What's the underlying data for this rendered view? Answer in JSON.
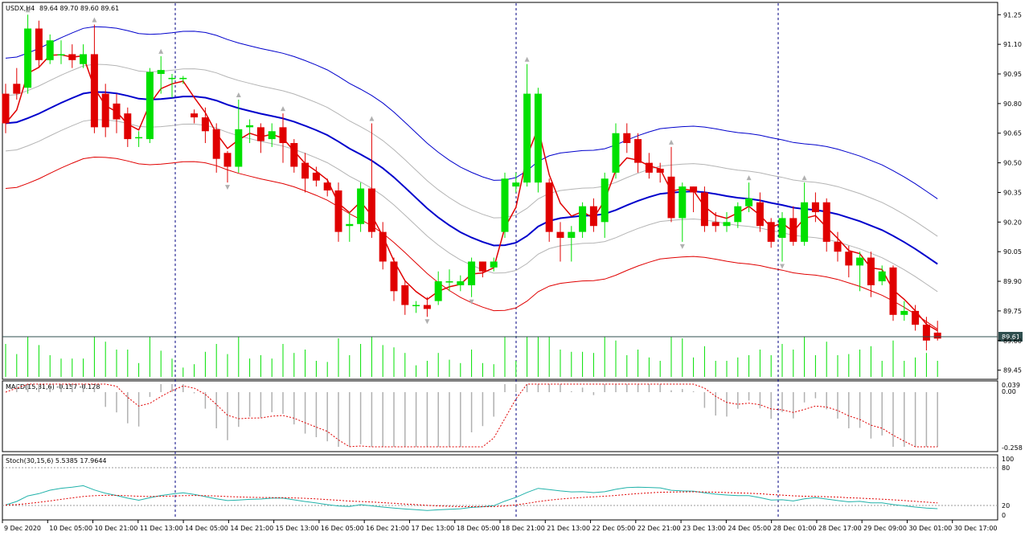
{
  "header": {
    "symbol_info": "USDX,H4",
    "ohlc": "89.64 89.70 89.60 89.61"
  },
  "current_price_label": "89.61",
  "price_axis": {
    "labels": [
      "91.25",
      "91.10",
      "90.95",
      "90.80",
      "90.65",
      "90.50",
      "90.35",
      "90.20",
      "90.05",
      "89.90",
      "89.75",
      "89.60",
      "89.45"
    ]
  },
  "time_axis": {
    "labels": [
      "9 Dec 2020",
      "10 Dec 05:00",
      "10 Dec 21:00",
      "11 Dec 13:00",
      "14 Dec 05:00",
      "14 Dec 21:00",
      "15 Dec 13:00",
      "16 Dec 05:00",
      "16 Dec 21:00",
      "17 Dec 13:00",
      "18 Dec 05:00",
      "18 Dec 21:00",
      "21 Dec 13:00",
      "22 Dec 05:00",
      "22 Dec 21:00",
      "23 Dec 13:00",
      "24 Dec 05:00",
      "28 Dec 01:00",
      "28 Dec 17:00",
      "29 Dec 09:00",
      "30 Dec 01:00",
      "30 Dec 17:00"
    ]
  },
  "macd_panel": {
    "title": "MACD(15,31,6) -0.157 -0.128",
    "scale_top": "0.039",
    "scale_zero": "0.00",
    "scale_bottom": "-0.258"
  },
  "stoch_panel": {
    "title": "Stoch(30,15,6) 5.5385 17.9644",
    "levels": [
      "100",
      "80",
      "20",
      "0"
    ]
  },
  "colors": {
    "bull": "#00e000",
    "bear": "#e00000",
    "ma_blue": "#0000cc",
    "ma_red": "#e00000",
    "band_gray": "#b4b4b4",
    "stoch_main": "#20b2aa",
    "grid_vline": "#000080"
  },
  "chart_data": {
    "type": "candlestick",
    "timeframe": "H4",
    "ylim": [
      89.42,
      91.3
    ],
    "candles": [
      [
        90.85,
        90.7,
        90.9,
        90.65
      ],
      [
        90.9,
        90.85,
        90.98,
        90.82
      ],
      [
        90.88,
        91.18,
        91.25,
        90.85
      ],
      [
        91.18,
        91.02,
        91.22,
        90.98
      ],
      [
        91.02,
        91.12,
        91.15,
        91.0
      ],
      [
        91.05,
        91.05,
        91.12,
        91.0
      ],
      [
        91.05,
        91.02,
        91.1,
        90.98
      ],
      [
        91.0,
        91.05,
        91.1,
        90.98
      ],
      [
        91.05,
        90.68,
        91.2,
        90.65
      ],
      [
        90.85,
        90.68,
        90.9,
        90.63
      ],
      [
        90.8,
        90.72,
        90.85,
        90.65
      ],
      [
        90.75,
        90.62,
        90.78,
        90.58
      ],
      [
        90.63,
        90.63,
        90.66,
        90.58
      ],
      [
        90.62,
        90.96,
        90.98,
        90.6
      ],
      [
        90.95,
        90.97,
        91.04,
        90.85
      ],
      [
        90.93,
        90.93,
        90.95,
        90.83
      ],
      [
        90.93,
        90.93,
        90.94,
        90.9
      ],
      [
        90.75,
        90.73,
        90.77,
        90.7
      ],
      [
        90.73,
        90.66,
        90.78,
        90.6
      ],
      [
        90.67,
        90.52,
        90.7,
        90.45
      ],
      [
        90.55,
        90.48,
        90.56,
        90.4
      ],
      [
        90.48,
        90.67,
        90.82,
        90.45
      ],
      [
        90.68,
        90.69,
        90.72,
        90.6
      ],
      [
        90.68,
        90.61,
        90.7,
        90.55
      ],
      [
        90.62,
        90.66,
        90.7,
        90.58
      ],
      [
        90.68,
        90.6,
        90.75,
        90.5
      ],
      [
        90.6,
        90.48,
        90.62,
        90.45
      ],
      [
        90.5,
        90.42,
        90.55,
        90.35
      ],
      [
        90.45,
        90.41,
        90.48,
        90.38
      ],
      [
        90.4,
        90.36,
        90.42,
        90.33
      ],
      [
        90.36,
        90.15,
        90.4,
        90.1
      ],
      [
        90.18,
        90.19,
        90.25,
        90.1
      ],
      [
        90.19,
        90.37,
        90.4,
        90.15
      ],
      [
        90.37,
        90.15,
        90.7,
        90.12
      ],
      [
        90.15,
        90.0,
        90.2,
        89.96
      ],
      [
        90.0,
        89.85,
        90.02,
        89.8
      ],
      [
        89.88,
        89.78,
        89.9,
        89.73
      ],
      [
        89.78,
        89.78,
        89.8,
        89.74
      ],
      [
        89.78,
        89.76,
        89.82,
        89.72
      ],
      [
        89.8,
        89.9,
        89.95,
        89.78
      ],
      [
        89.9,
        89.9,
        89.96,
        89.85
      ],
      [
        89.88,
        89.9,
        89.93,
        89.85
      ],
      [
        89.88,
        90.0,
        90.02,
        89.82
      ],
      [
        90.0,
        89.95,
        90.0,
        89.92
      ],
      [
        89.97,
        90.0,
        90.02,
        89.95
      ],
      [
        90.15,
        90.42,
        90.45,
        90.12
      ],
      [
        90.38,
        90.4,
        90.45,
        90.35
      ],
      [
        90.4,
        90.85,
        91.0,
        90.38
      ],
      [
        90.4,
        90.85,
        90.88,
        90.35
      ],
      [
        90.4,
        90.15,
        90.42,
        90.1
      ],
      [
        90.15,
        90.12,
        90.2,
        90.0
      ],
      [
        90.12,
        90.15,
        90.18,
        90.0
      ],
      [
        90.15,
        90.28,
        90.3,
        90.12
      ],
      [
        90.28,
        90.18,
        90.32,
        90.15
      ],
      [
        90.2,
        90.42,
        90.45,
        90.12
      ],
      [
        90.45,
        90.65,
        90.7,
        90.42
      ],
      [
        90.65,
        90.6,
        90.7,
        90.55
      ],
      [
        90.62,
        90.5,
        90.65,
        90.45
      ],
      [
        90.5,
        90.45,
        90.55,
        90.42
      ],
      [
        90.47,
        90.45,
        90.5,
        90.4
      ],
      [
        90.43,
        90.22,
        90.58,
        90.2
      ],
      [
        90.22,
        90.38,
        90.4,
        90.1
      ],
      [
        90.38,
        90.35,
        90.38,
        90.25
      ],
      [
        90.35,
        90.18,
        90.38,
        90.15
      ],
      [
        90.2,
        90.18,
        90.25,
        90.15
      ],
      [
        90.18,
        90.2,
        90.25,
        90.15
      ],
      [
        90.2,
        90.28,
        90.3,
        90.17
      ],
      [
        90.28,
        90.32,
        90.4,
        90.25
      ],
      [
        90.3,
        90.18,
        90.35,
        90.15
      ],
      [
        90.2,
        90.1,
        90.22,
        90.07
      ],
      [
        90.12,
        90.22,
        90.25,
        90.0
      ],
      [
        90.22,
        90.1,
        90.28,
        90.08
      ],
      [
        90.1,
        90.3,
        90.4,
        90.08
      ],
      [
        90.3,
        90.25,
        90.35,
        90.2
      ],
      [
        90.3,
        90.1,
        90.32,
        90.05
      ],
      [
        90.1,
        90.05,
        90.15,
        90.0
      ],
      [
        90.05,
        89.98,
        90.08,
        89.92
      ],
      [
        89.98,
        90.02,
        90.05,
        89.85
      ],
      [
        90.02,
        89.88,
        90.05,
        89.82
      ],
      [
        89.9,
        89.95,
        89.98,
        89.88
      ],
      [
        89.97,
        89.73,
        89.98,
        89.7
      ],
      [
        89.73,
        89.75,
        89.8,
        89.7
      ],
      [
        89.75,
        89.68,
        89.78,
        89.65
      ],
      [
        89.68,
        89.6,
        89.72,
        89.55
      ],
      [
        89.64,
        89.61,
        89.7,
        89.6
      ]
    ]
  }
}
